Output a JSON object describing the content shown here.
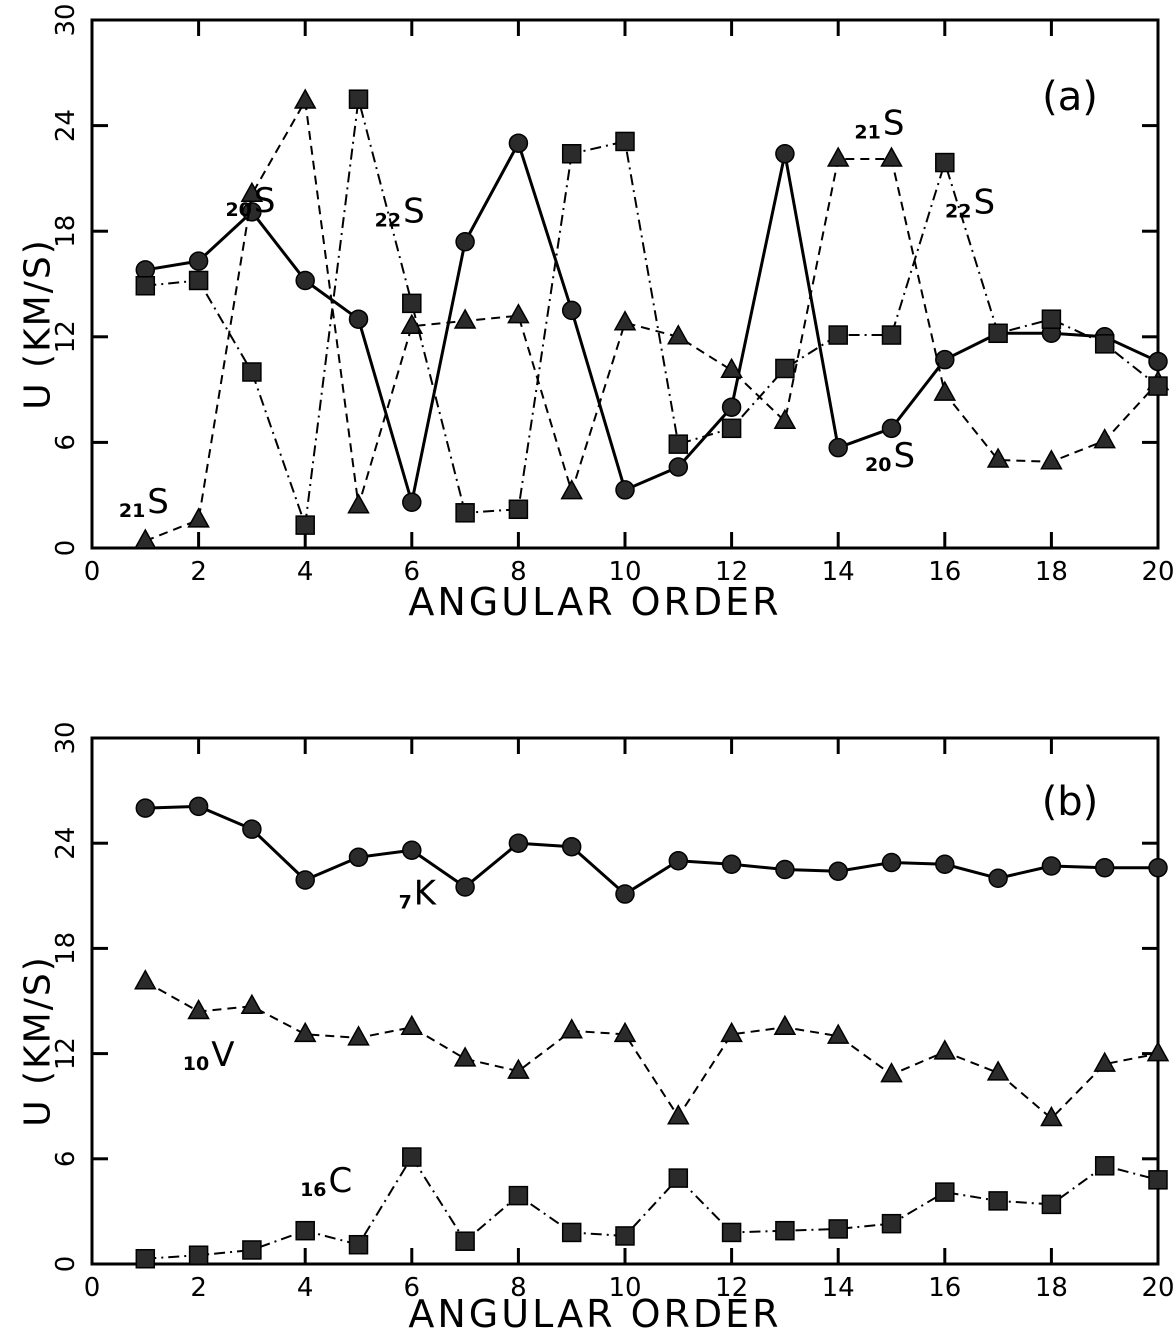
{
  "chart_data": [
    {
      "type": "line",
      "panel_label": "(a)",
      "xlabel": "ANGULAR ORDER",
      "ylabel": "U (KM/S)",
      "xlim": [
        0,
        20
      ],
      "ylim": [
        0,
        30
      ],
      "xticks": [
        0,
        2,
        4,
        6,
        8,
        10,
        12,
        14,
        16,
        18,
        20
      ],
      "yticks": [
        0,
        6,
        12,
        18,
        24,
        30
      ],
      "grid": false,
      "x": [
        1,
        2,
        3,
        4,
        5,
        6,
        7,
        8,
        9,
        10,
        11,
        12,
        13,
        14,
        15,
        16,
        17,
        18,
        19,
        20
      ],
      "series": [
        {
          "name": "20S",
          "marker": "circle",
          "linestyle": "solid",
          "values": [
            15.8,
            16.3,
            19.1,
            15.2,
            13.0,
            2.6,
            17.4,
            23.0,
            13.5,
            3.3,
            4.6,
            8.0,
            22.4,
            5.7,
            6.8,
            10.7,
            12.2,
            12.2,
            12.0,
            10.6
          ]
        },
        {
          "name": "21S",
          "marker": "triangle",
          "linestyle": "dashed",
          "values": [
            0.4,
            1.6,
            20.1,
            25.4,
            2.4,
            12.6,
            12.9,
            13.2,
            3.2,
            12.8,
            12.0,
            10.1,
            7.2,
            22.1,
            22.1,
            8.8,
            5.0,
            4.9,
            6.1,
            9.4
          ]
        },
        {
          "name": "22S",
          "marker": "square",
          "linestyle": "dash-dot",
          "values": [
            14.9,
            15.2,
            10.0,
            1.3,
            25.5,
            13.9,
            2.0,
            2.2,
            22.4,
            23.1,
            5.9,
            6.8,
            10.2,
            12.1,
            12.1,
            21.9,
            12.2,
            13.0,
            11.6,
            9.2
          ]
        }
      ],
      "annotations": [
        {
          "prefix": "20",
          "letter": "S",
          "series": "20S",
          "x": 3.0,
          "y": 19.1
        },
        {
          "prefix": "22",
          "letter": "S",
          "series": "22S",
          "x": 5.8,
          "y": 18.5
        },
        {
          "prefix": "21",
          "letter": "S",
          "series": "21S",
          "x": 1.0,
          "y": 2.0
        },
        {
          "prefix": "21",
          "letter": "S",
          "series": "21S",
          "x": 14.8,
          "y": 23.5
        },
        {
          "prefix": "22",
          "letter": "S",
          "series": "22S",
          "x": 16.5,
          "y": 19.0
        },
        {
          "prefix": "20",
          "letter": "S",
          "series": "20S",
          "x": 15.0,
          "y": 4.6
        }
      ]
    },
    {
      "type": "line",
      "panel_label": "(b)",
      "xlabel": "ANGULAR ORDER",
      "ylabel": "U (KM/S)",
      "xlim": [
        0,
        20
      ],
      "ylim": [
        0,
        30
      ],
      "xticks": [
        0,
        2,
        4,
        6,
        8,
        10,
        12,
        14,
        16,
        18,
        20
      ],
      "yticks": [
        0,
        6,
        12,
        18,
        24,
        30
      ],
      "grid": false,
      "x": [
        1,
        2,
        3,
        4,
        5,
        6,
        7,
        8,
        9,
        10,
        11,
        12,
        13,
        14,
        15,
        16,
        17,
        18,
        19,
        20
      ],
      "series": [
        {
          "name": "7K",
          "marker": "circle",
          "linestyle": "solid",
          "values": [
            26.0,
            26.1,
            24.8,
            21.9,
            23.2,
            23.6,
            21.5,
            24.0,
            23.8,
            21.1,
            23.0,
            22.8,
            22.5,
            22.4,
            22.9,
            22.8,
            22.0,
            22.7,
            22.6,
            22.6
          ]
        },
        {
          "name": "10V",
          "marker": "triangle",
          "linestyle": "dashed",
          "values": [
            16.1,
            14.4,
            14.7,
            13.1,
            12.9,
            13.5,
            11.7,
            11.0,
            13.3,
            13.1,
            8.4,
            13.1,
            13.5,
            13.0,
            10.8,
            12.1,
            10.9,
            8.3,
            11.4,
            12.0
          ]
        },
        {
          "name": "16C",
          "marker": "square",
          "linestyle": "dash-dot",
          "values": [
            0.3,
            0.5,
            0.8,
            1.9,
            1.1,
            6.1,
            1.3,
            3.9,
            1.8,
            1.6,
            4.9,
            1.8,
            1.9,
            2.0,
            2.3,
            4.1,
            3.6,
            3.4,
            5.6,
            4.8
          ]
        }
      ],
      "annotations": [
        {
          "prefix": "7",
          "letter": "K",
          "series": "7K",
          "x": 6.0,
          "y": 20.5
        },
        {
          "prefix": "10",
          "letter": "V",
          "series": "10V",
          "x": 2.2,
          "y": 11.3
        },
        {
          "prefix": "16",
          "letter": "C",
          "series": "16C",
          "x": 4.4,
          "y": 4.1
        }
      ]
    }
  ]
}
